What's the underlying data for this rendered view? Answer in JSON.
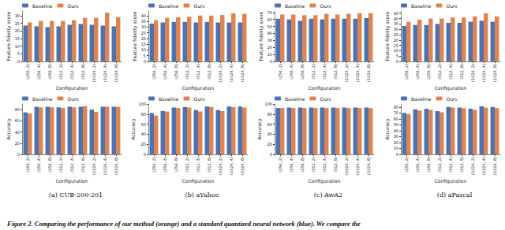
{
  "caption": "Figure 2. Comparing the performance of our method (orange) and a standard quantized neural network (blue). We compare the",
  "chart_data": [
    {
      "type": "bar",
      "x_label": "Configuration",
      "y_label": "Feature fidelity score",
      "categories": [
        "(256, 2)",
        "(256, 4)",
        "(256, 8)",
        "(512, 2)",
        "(512, 4)",
        "(512, 8)",
        "(1024, 2)",
        "(1024, 4)",
        "(1024, 8)"
      ],
      "series": [
        {
          "name": "Baseline",
          "color": "#4c72b0",
          "values": [
            23.5,
            23,
            22.5,
            23,
            24,
            24.5,
            24,
            23.5,
            23
          ]
        },
        {
          "name": "Ours",
          "color": "#dd8452",
          "values": [
            25.5,
            26.5,
            26.5,
            26.5,
            27,
            28.5,
            28.5,
            32,
            29
          ]
        }
      ],
      "ylim": [
        0,
        33
      ],
      "yticks": [
        0,
        5,
        10,
        15,
        20,
        25,
        30
      ],
      "grid": false,
      "legend": "top"
    },
    {
      "type": "bar",
      "x_label": "Configuration",
      "y_label": "Feature fidelity score",
      "categories": [
        "(256, 2)",
        "(256, 4)",
        "(256, 8)",
        "(512, 2)",
        "(512, 4)",
        "(512, 8)",
        "(1024, 2)",
        "(1024, 4)",
        "(1024, 8)"
      ],
      "series": [
        {
          "name": "Baseline",
          "color": "#4c72b0",
          "values": [
            33,
            34,
            34.5,
            34.5,
            34,
            34.5,
            34,
            34,
            34
          ]
        },
        {
          "name": "Ours",
          "color": "#dd8452",
          "values": [
            36,
            38,
            38.5,
            39,
            40,
            40,
            40.5,
            42,
            41.5
          ]
        }
      ],
      "ylim": [
        0,
        44
      ],
      "yticks": [
        0,
        5,
        10,
        15,
        20,
        25,
        30,
        35,
        40
      ],
      "grid": false,
      "legend": "top"
    },
    {
      "type": "bar",
      "x_label": "Configuration",
      "y_label": "Feature fidelity score",
      "categories": [
        "(256, 2)",
        "(256, 4)",
        "(256, 8)",
        "(512, 2)",
        "(512, 4)",
        "(512, 8)",
        "(1024, 2)",
        "(1024, 4)",
        "(1024, 8)"
      ],
      "series": [
        {
          "name": "Baseline",
          "color": "#4c72b0",
          "values": [
            61,
            60,
            58,
            61,
            60,
            61,
            61,
            61,
            62
          ]
        },
        {
          "name": "Ours",
          "color": "#dd8452",
          "values": [
            67,
            67,
            66,
            66,
            68,
            67,
            68,
            69,
            69
          ]
        }
      ],
      "ylim": [
        0,
        72
      ],
      "yticks": [
        0,
        10,
        20,
        30,
        40,
        50,
        60,
        70
      ],
      "grid": false,
      "legend": "top"
    },
    {
      "type": "bar",
      "x_label": "Configuration",
      "y_label": "Feature fidelity score",
      "categories": [
        "(256, 2)",
        "(256, 4)",
        "(256, 8)",
        "(512, 2)",
        "(512, 4)",
        "(512, 8)",
        "(1024, 2)",
        "(1024, 4)",
        "(1024, 8)"
      ],
      "series": [
        {
          "name": "Baseline",
          "color": "#4c72b0",
          "values": [
            33,
            34,
            34,
            35,
            36,
            36,
            37,
            38,
            37
          ]
        },
        {
          "name": "Ours",
          "color": "#dd8452",
          "values": [
            37,
            39,
            40,
            40,
            41,
            41,
            42,
            45,
            42
          ]
        }
      ],
      "ylim": [
        0,
        47
      ],
      "yticks": [
        0,
        5,
        10,
        15,
        20,
        25,
        30,
        35,
        40,
        45
      ],
      "grid": false,
      "legend": "top"
    },
    {
      "type": "bar",
      "title": "(a) CUB-200-201",
      "x_label": "Configuration",
      "y_label": "Accuracy",
      "categories": [
        "(256, 2)",
        "(256, 4)",
        "(256, 8)",
        "(512, 2)",
        "(512, 4)",
        "(512, 8)",
        "(1024, 2)",
        "(1024, 4)",
        "(1024, 8)"
      ],
      "series": [
        {
          "name": "Baseline",
          "color": "#4c72b0",
          "values": [
            75,
            85,
            85,
            84,
            85,
            85,
            80,
            85,
            85
          ]
        },
        {
          "name": "Ours",
          "color": "#dd8452",
          "values": [
            73,
            84,
            84,
            83,
            84,
            86,
            76,
            85,
            85
          ]
        }
      ],
      "ylim": [
        0,
        90
      ],
      "yticks": [
        0,
        20,
        40,
        60,
        80
      ],
      "grid": false,
      "legend": "top"
    },
    {
      "type": "bar",
      "title": "(b) aYahoo",
      "x_label": "Configuration",
      "y_label": "Accuracy",
      "categories": [
        "(256, 2)",
        "(256, 4)",
        "(256, 8)",
        "(512, 2)",
        "(512, 4)",
        "(512, 8)",
        "(1024, 2)",
        "(1024, 4)",
        "(1024, 8)"
      ],
      "series": [
        {
          "name": "Baseline",
          "color": "#4c72b0",
          "values": [
            82,
            86,
            93,
            94,
            88,
            95,
            88,
            95,
            95
          ]
        },
        {
          "name": "Ours",
          "color": "#dd8452",
          "values": [
            77,
            85,
            92,
            93,
            85,
            94,
            86,
            94,
            93
          ]
        }
      ],
      "ylim": [
        0,
        100
      ],
      "yticks": [
        0,
        20,
        40,
        60,
        80,
        100
      ],
      "grid": false,
      "legend": "top"
    },
    {
      "type": "bar",
      "title": "(c) AwA2",
      "x_label": "Configuration",
      "y_label": "Accuracy",
      "categories": [
        "(256, 2)",
        "(256, 4)",
        "(256, 8)",
        "(512, 2)",
        "(512, 4)",
        "(512, 8)",
        "(1024, 2)",
        "(1024, 4)",
        "(1024, 8)"
      ],
      "series": [
        {
          "name": "Baseline",
          "color": "#4c72b0",
          "values": [
            92,
            93,
            93,
            93,
            93,
            93,
            93,
            93,
            93
          ]
        },
        {
          "name": "Ours",
          "color": "#dd8452",
          "values": [
            92,
            92,
            92,
            92,
            92,
            92,
            92,
            92,
            92
          ]
        }
      ],
      "ylim": [
        0,
        100
      ],
      "yticks": [
        0,
        20,
        40,
        60,
        80,
        100
      ],
      "grid": false,
      "legend": "top"
    },
    {
      "type": "bar",
      "title": "(d) aPascal",
      "x_label": "Configuration",
      "y_label": "Accuracy",
      "categories": [
        "(256, 2)",
        "(256, 4)",
        "(256, 8)",
        "(512, 2)",
        "(512, 4)",
        "(512, 8)",
        "(1024, 2)",
        "(1024, 4)",
        "(1024, 8)"
      ],
      "series": [
        {
          "name": "Baseline",
          "color": "#4c72b0",
          "values": [
            70,
            76,
            77,
            73,
            80,
            79,
            77,
            81,
            80
          ]
        },
        {
          "name": "Ours",
          "color": "#dd8452",
          "values": [
            68,
            74,
            75,
            71,
            79,
            78,
            75,
            79,
            78
          ]
        }
      ],
      "ylim": [
        0,
        85
      ],
      "yticks": [
        0,
        10,
        20,
        30,
        40,
        50,
        60,
        70,
        80
      ],
      "grid": false,
      "legend": "top"
    }
  ]
}
